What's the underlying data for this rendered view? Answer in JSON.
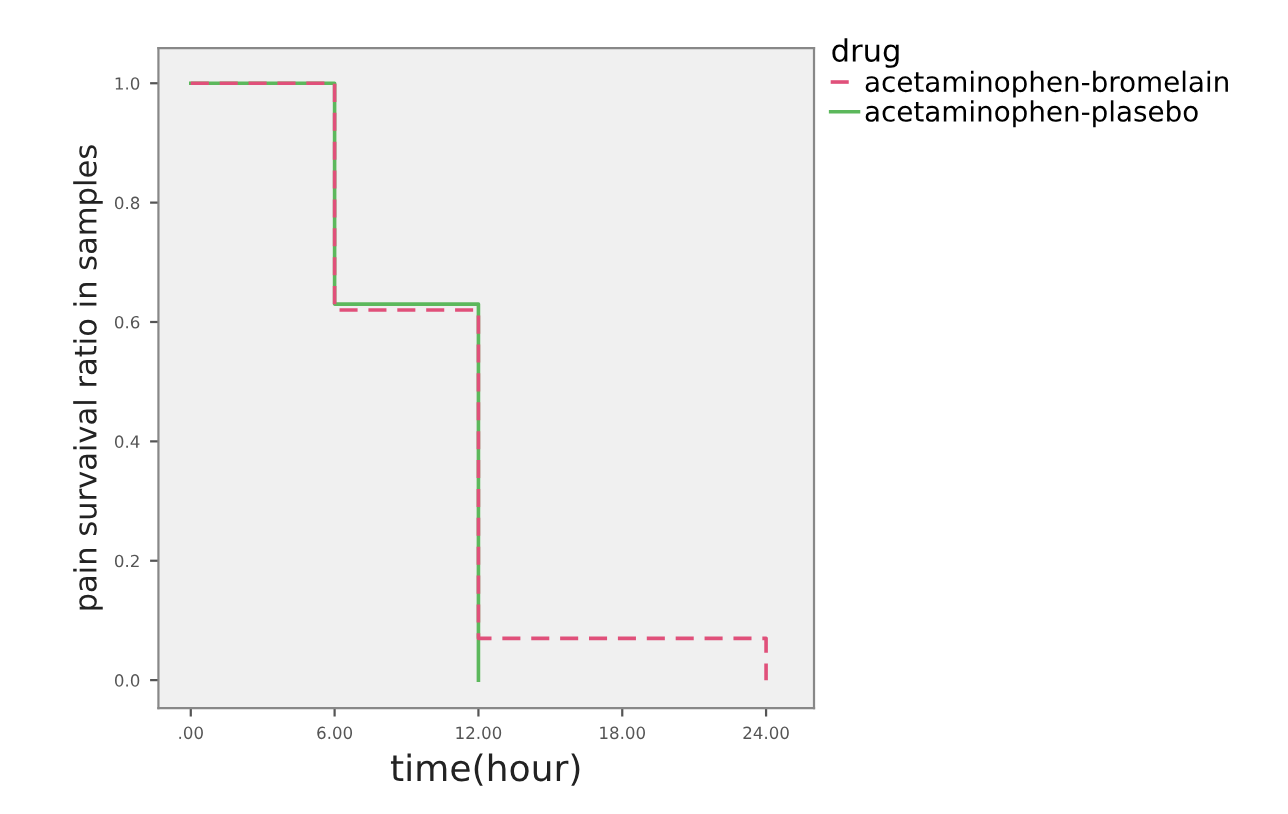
{
  "chart_data": {
    "type": "step",
    "xlabel": "time(hour)",
    "ylabel": "pain survaival ratio in samples",
    "legend_title": "drug",
    "legend": "top right",
    "series": [
      {
        "name": "acetaminophen-bromelain",
        "color": "#e0507a",
        "line_style": "dashed",
        "x": [
          0,
          6,
          12,
          24
        ],
        "values": [
          1.0,
          0.62,
          0.07,
          0.0
        ]
      },
      {
        "name": "acetaminophen-plasebo",
        "color": "#5cb85c",
        "line_style": "solid",
        "x": [
          0,
          6,
          12
        ],
        "values": [
          1.0,
          0.63,
          0.0
        ]
      }
    ],
    "xlim": [
      -1.35,
      26.0
    ],
    "ylim": [
      -0.047,
      1.059
    ],
    "xticks": [
      {
        "value": 0,
        "label": ".00"
      },
      {
        "value": 6,
        "label": "6.00"
      },
      {
        "value": 12,
        "label": "12.00"
      },
      {
        "value": 18,
        "label": "18.00"
      },
      {
        "value": 24,
        "label": "24.00"
      }
    ],
    "yticks": [
      {
        "value": 0,
        "label": "0.0"
      },
      {
        "value": 0.2,
        "label": "0.2"
      },
      {
        "value": 0.4,
        "label": "0.4"
      },
      {
        "value": 0.6,
        "label": "0.6"
      },
      {
        "value": 0.8,
        "label": "0.8"
      },
      {
        "value": 1.0,
        "label": "1.0"
      }
    ],
    "grid": false
  }
}
